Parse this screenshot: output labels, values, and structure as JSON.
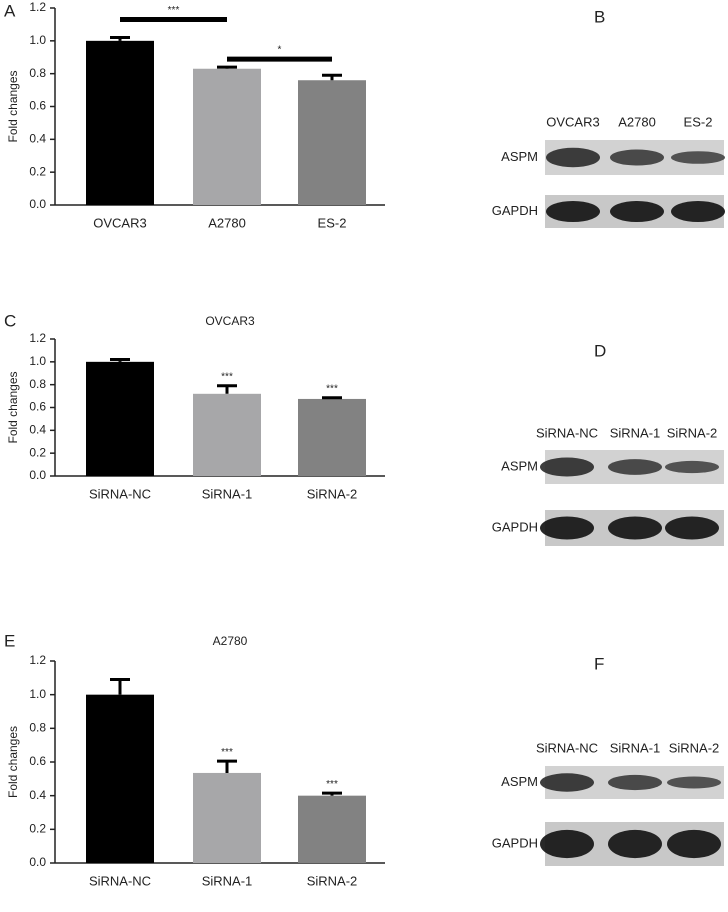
{
  "charts_panels": [
    "A",
    "C",
    "E"
  ],
  "chart_data": [
    {
      "type": "bar",
      "y_label": "Fold changes",
      "categories": [
        "OVCAR3",
        "A2780",
        "ES-2"
      ],
      "values": [
        1.0,
        0.83,
        0.76
      ],
      "errors": [
        0.02,
        0.01,
        0.03
      ],
      "colors": [
        "#000000",
        "#a7a7a9",
        "#828282"
      ],
      "ylim": [
        0,
        1.2
      ],
      "yticks": [
        {
          "value": 0,
          "label": "0.0"
        },
        0.2,
        0.4,
        0.6,
        0.8,
        {
          "value": 1,
          "label": "1.0"
        },
        1.2
      ],
      "annotations": [
        "***",
        "*"
      ]
    },
    {
      "type": "bar",
      "title": "OVCAR3",
      "y_label": "Fold changes",
      "categories": [
        "SiRNA-NC",
        "SiRNA-1",
        "SiRNA-2"
      ],
      "values": [
        1.0,
        0.72,
        0.675
      ],
      "errors": [
        0.02,
        0.07,
        0.01
      ],
      "colors": [
        "#000000",
        "#a7a7a9",
        "#828282"
      ],
      "ylim": [
        0,
        1.2
      ],
      "yticks": [
        {
          "value": 0,
          "label": "0.0"
        },
        0.2,
        0.4,
        0.6,
        0.8,
        {
          "value": 1,
          "label": "1.0"
        },
        1.2
      ],
      "annotations": [
        "***",
        "***"
      ]
    },
    {
      "type": "bar",
      "title": "A2780",
      "y_label": "Fold changes",
      "categories": [
        "SiRNA-NC",
        "SiRNA-1",
        "SiRNA-2"
      ],
      "values": [
        1.0,
        0.535,
        0.4
      ],
      "errors": [
        0.09,
        0.07,
        0.015
      ],
      "colors": [
        "#000000",
        "#a7a7a9",
        "#828282"
      ],
      "ylim": [
        0,
        1.2
      ],
      "yticks": [
        {
          "value": 0,
          "label": "0.0"
        },
        0.2,
        0.4,
        0.6,
        0.8,
        {
          "value": 1,
          "label": "1.0"
        },
        1.2
      ],
      "annotations": [
        "***",
        "***"
      ]
    }
  ],
  "blots": [
    {
      "panel": "B",
      "lanes": [
        "OVCAR3",
        "A2780",
        "ES-2"
      ],
      "rows": [
        "ASPM",
        "GAPDH"
      ]
    },
    {
      "panel": "D",
      "lanes": [
        "SiRNA-NC",
        "SiRNA-1",
        "SiRNA-2"
      ],
      "rows": [
        "ASPM",
        "GAPDH"
      ]
    },
    {
      "panel": "F",
      "lanes": [
        "SiRNA-NC",
        "SiRNA-1",
        "SiRNA-2"
      ],
      "rows": [
        "ASPM",
        "GAPDH"
      ]
    }
  ]
}
